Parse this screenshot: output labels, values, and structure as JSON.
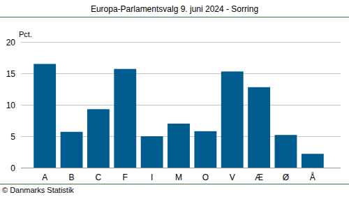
{
  "chart_data": {
    "type": "bar",
    "title": "Europa-Parlamentsvalg 9. juni 2024 - Sorring",
    "y_label": "Pct.",
    "source": "© Danmarks Statistik",
    "categories": [
      "A",
      "B",
      "C",
      "F",
      "I",
      "M",
      "O",
      "V",
      "Æ",
      "Ø",
      "Å"
    ],
    "values": [
      16.5,
      5.7,
      9.3,
      15.7,
      5.0,
      7.0,
      5.8,
      15.3,
      12.8,
      5.2,
      2.2
    ],
    "color": "#005b8f",
    "ylim": [
      0,
      20
    ],
    "yticks": [
      0,
      5,
      10,
      15,
      20
    ],
    "grid": true
  }
}
